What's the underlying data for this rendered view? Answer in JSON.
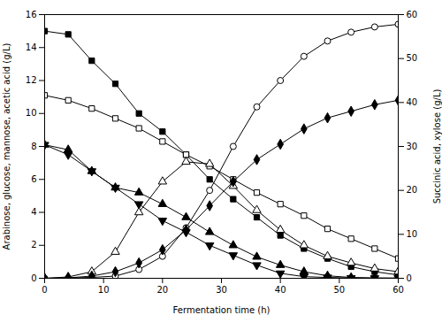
{
  "chart_data": {
    "type": "line",
    "xlabel": "Fermentation time (h)",
    "ylabel": "Arabinose, glucose, mannose, acetic acid (g/L)",
    "y2label": "Succinic acid, xylose (g/L)",
    "x": [
      0,
      4,
      8,
      12,
      16,
      20,
      24,
      28,
      32,
      36,
      40,
      44,
      48,
      52,
      56,
      60
    ],
    "series": [
      {
        "color": "black",
        "marker": "square",
        "axis": "y",
        "values": [
          15.0,
          14.8,
          13.2,
          11.8,
          10.0,
          8.9,
          7.5,
          6.0,
          4.8,
          3.7,
          2.6,
          1.8,
          1.2,
          0.7,
          0.4,
          0.2
        ]
      },
      {
        "color": "black",
        "marker": "open-square",
        "axis": "y",
        "values": [
          11.1,
          10.8,
          10.3,
          9.7,
          9.1,
          8.3,
          7.5,
          6.8,
          6.0,
          5.2,
          4.5,
          3.8,
          3.0,
          2.4,
          1.8,
          1.2
        ]
      },
      {
        "color": "black",
        "marker": "triangle",
        "axis": "y",
        "values": [
          8.1,
          7.8,
          6.5,
          5.5,
          5.2,
          4.5,
          3.7,
          2.8,
          2.0,
          1.3,
          0.8,
          0.4,
          0.15,
          0.05,
          0.02,
          0.01
        ]
      },
      {
        "color": "black",
        "marker": "triangle-down",
        "axis": "y",
        "values": [
          8.1,
          7.5,
          6.5,
          5.5,
          4.5,
          3.5,
          2.8,
          2.0,
          1.4,
          0.8,
          0.3,
          0.1,
          0.05,
          0.02,
          0.01,
          0.01
        ]
      },
      {
        "color": "black",
        "marker": "open-triangle",
        "axis": "y2",
        "values": [
          0.0,
          0.3,
          1.5,
          6.0,
          15.0,
          22.0,
          26.5,
          26.0,
          21.0,
          15.5,
          11.0,
          7.5,
          5.0,
          3.5,
          2.2,
          1.5
        ]
      },
      {
        "color": "black",
        "marker": "open-circle",
        "axis": "y2",
        "values": [
          0.0,
          0.05,
          0.2,
          0.5,
          2.0,
          5.0,
          11.5,
          20.0,
          30.0,
          39.0,
          45.0,
          50.5,
          54.0,
          56.0,
          57.2,
          57.8
        ]
      },
      {
        "color": "black",
        "marker": "diamond",
        "axis": "y2",
        "values": [
          0.0,
          0.1,
          0.5,
          1.5,
          3.5,
          6.5,
          11.0,
          16.5,
          22.0,
          27.0,
          30.5,
          34.0,
          36.5,
          38.0,
          39.5,
          40.5
        ]
      }
    ],
    "xlim": [
      0,
      60
    ],
    "xticks": [
      0,
      10,
      20,
      30,
      40,
      50,
      60
    ],
    "ylim": [
      0,
      16
    ],
    "yticks": [
      0,
      2,
      4,
      6,
      8,
      10,
      12,
      14,
      16
    ],
    "y2lim": [
      0,
      60
    ],
    "y2ticks": [
      0,
      10,
      20,
      30,
      40,
      50,
      60
    ],
    "grid": false
  }
}
